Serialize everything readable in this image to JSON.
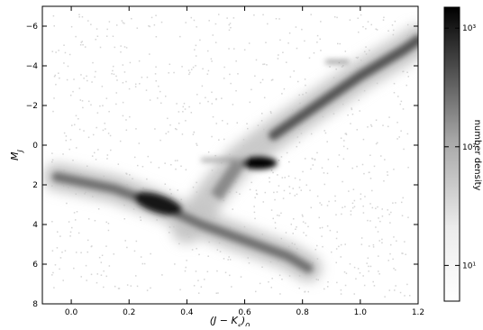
{
  "chart_data": {
    "type": "heatmap",
    "title": "",
    "xlabel": "(J − K_s)_0",
    "ylabel": "M_J",
    "xlim": [
      -0.1,
      1.2
    ],
    "ylim": [
      8,
      -7
    ],
    "y_inverted": true,
    "x_ticks": [
      {
        "value": 0.0,
        "label": "0.0"
      },
      {
        "value": 0.2,
        "label": "0.2"
      },
      {
        "value": 0.4,
        "label": "0.4"
      },
      {
        "value": 0.6,
        "label": "0.6"
      },
      {
        "value": 0.8,
        "label": "0.8"
      },
      {
        "value": 1.0,
        "label": "1.0"
      },
      {
        "value": 1.2,
        "label": "1.2"
      }
    ],
    "y_ticks": [
      {
        "value": -6,
        "label": "−6"
      },
      {
        "value": -4,
        "label": "−4"
      },
      {
        "value": -2,
        "label": "−2"
      },
      {
        "value": 0,
        "label": "0"
      },
      {
        "value": 2,
        "label": "2"
      },
      {
        "value": 4,
        "label": "4"
      },
      {
        "value": 6,
        "label": "6"
      },
      {
        "value": 8,
        "label": "8"
      }
    ],
    "grid": false,
    "colorbar": {
      "label": "number density",
      "scale": "log",
      "range": [
        5,
        1500
      ],
      "ticks": [
        {
          "value": 10,
          "label": "10¹"
        },
        {
          "value": 100,
          "label": "10²"
        },
        {
          "value": 1000,
          "label": "10³"
        }
      ],
      "colormap": "gray_r"
    },
    "density_features": [
      {
        "name": "main sequence",
        "path": [
          [
            -0.05,
            1.6
          ],
          [
            0.15,
            2.2
          ],
          [
            0.3,
            3.0
          ],
          [
            0.45,
            4.0
          ],
          [
            0.6,
            4.8
          ],
          [
            0.75,
            5.6
          ],
          [
            0.82,
            6.2
          ]
        ],
        "peak": 1200
      },
      {
        "name": "red clump",
        "x": 0.65,
        "y": 0.9,
        "peak": 1500
      },
      {
        "name": "giant branch",
        "path": [
          [
            0.4,
            4.2
          ],
          [
            0.5,
            2.2
          ],
          [
            0.58,
            0.8
          ],
          [
            0.7,
            -0.5
          ],
          [
            0.85,
            -2.0
          ],
          [
            1.0,
            -3.5
          ],
          [
            1.15,
            -4.8
          ],
          [
            1.2,
            -5.3
          ]
        ],
        "peak": 400
      }
    ]
  }
}
